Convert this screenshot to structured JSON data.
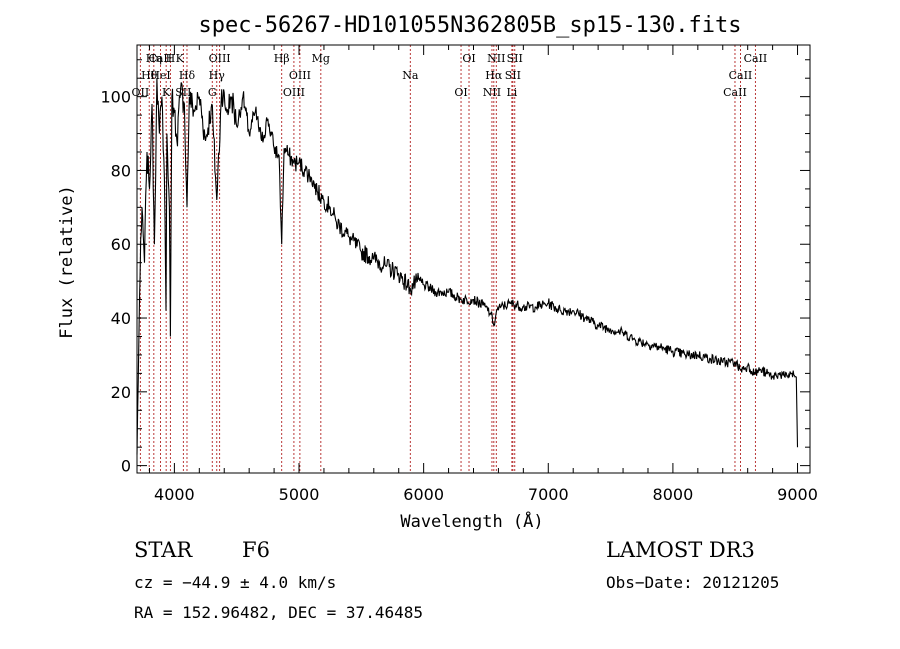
{
  "chart_data": {
    "type": "line",
    "title": "spec-56267-HD101055N362805B_sp15-130.fits",
    "xlabel": "Wavelength (Å)",
    "ylabel": "Flux (relative)",
    "xlim": [
      3700,
      9100
    ],
    "ylim": [
      -2,
      114
    ],
    "x_ticks": [
      4000,
      5000,
      6000,
      7000,
      8000,
      9000
    ],
    "y_ticks": [
      0,
      20,
      40,
      60,
      80,
      100
    ],
    "line_color": "#000000",
    "marker_color": "#b22222",
    "series": [
      {
        "name": "flux",
        "x": [
          3700,
          3720,
          3740,
          3760,
          3780,
          3800,
          3820,
          3840,
          3860,
          3880,
          3900,
          3920,
          3933,
          3940,
          3960,
          3968,
          3980,
          4000,
          4020,
          4050,
          4080,
          4101,
          4120,
          4160,
          4200,
          4250,
          4300,
          4340,
          4380,
          4420,
          4460,
          4500,
          4550,
          4600,
          4650,
          4700,
          4750,
          4800,
          4840,
          4861,
          4880,
          4920,
          4960,
          5000,
          5050,
          5100,
          5150,
          5200,
          5250,
          5300,
          5400,
          5500,
          5600,
          5700,
          5800,
          5893,
          5950,
          6000,
          6100,
          6200,
          6300,
          6400,
          6500,
          6540,
          6563,
          6585,
          6620,
          6700,
          6800,
          6900,
          7000,
          7100,
          7200,
          7300,
          7400,
          7500,
          7600,
          7700,
          7800,
          7900,
          8000,
          8100,
          8200,
          8300,
          8400,
          8500,
          8542,
          8600,
          8662,
          8700,
          8750,
          8800,
          8850,
          8900,
          8950,
          8990,
          9000
        ],
        "y": [
          3,
          45,
          70,
          55,
          85,
          75,
          98,
          60,
          105,
          90,
          100,
          78,
          42,
          90,
          70,
          35,
          100,
          96,
          88,
          102,
          98,
          70,
          100,
          96,
          100,
          88,
          98,
          72,
          102,
          96,
          100,
          92,
          100,
          90,
          96,
          88,
          94,
          86,
          84,
          60,
          86,
          84,
          82,
          82,
          80,
          78,
          74,
          72,
          70,
          66,
          62,
          58,
          56,
          54,
          52,
          48,
          50,
          49,
          47,
          47,
          45,
          45,
          43,
          41,
          38,
          42,
          43,
          44,
          43,
          43,
          44,
          42,
          42,
          40,
          38,
          37,
          36,
          34,
          33,
          32,
          31,
          30,
          30,
          29,
          28,
          28,
          26,
          27,
          25,
          26,
          25,
          24,
          25,
          24,
          25,
          24,
          5
        ]
      }
    ],
    "lines": [
      {
        "label": "CaII K",
        "wavelength": 3934
      },
      {
        "label": "Hθ",
        "wavelength": 3798
      },
      {
        "label": "OII",
        "wavelength": 3727
      },
      {
        "label": "Hη",
        "wavelength": 3835
      },
      {
        "label": "HeI",
        "wavelength": 3889
      },
      {
        "label": "K",
        "wavelength": 3934
      },
      {
        "label": "H",
        "wavelength": 3968
      },
      {
        "label": "Hδ",
        "wavelength": 4101
      },
      {
        "label": "SII",
        "wavelength": 4072
      },
      {
        "label": "OIII",
        "wavelength": 4363
      },
      {
        "label": "Hγ",
        "wavelength": 4340
      },
      {
        "label": "G",
        "wavelength": 4304
      },
      {
        "label": "Hβ",
        "wavelength": 4861
      },
      {
        "label": "OIII",
        "wavelength": 5007
      },
      {
        "label": "OIII",
        "wavelength": 4959
      },
      {
        "label": "Mg",
        "wavelength": 5175
      },
      {
        "label": "Na",
        "wavelength": 5893
      },
      {
        "label": "OI",
        "wavelength": 6300
      },
      {
        "label": "OI",
        "wavelength": 6364
      },
      {
        "label": "Hα",
        "wavelength": 6563
      },
      {
        "label": "NII",
        "wavelength": 6548
      },
      {
        "label": "NII",
        "wavelength": 6583
      },
      {
        "label": "SII",
        "wavelength": 6716
      },
      {
        "label": "Li",
        "wavelength": 6708
      },
      {
        "label": "SII",
        "wavelength": 6731
      },
      {
        "label": "CaII",
        "wavelength": 8542
      },
      {
        "label": "CaII",
        "wavelength": 8498
      },
      {
        "label": "CaII",
        "wavelength": 8662
      }
    ],
    "annotations": {
      "class_label": "STAR",
      "subclass": "F6",
      "survey": "LAMOST DR3",
      "velocity": "cz = −44.9 ± 4.0 km/s",
      "obs_date": "Obs−Date: 20121205",
      "coords": "RA = 152.96482, DEC =  37.46485"
    }
  }
}
